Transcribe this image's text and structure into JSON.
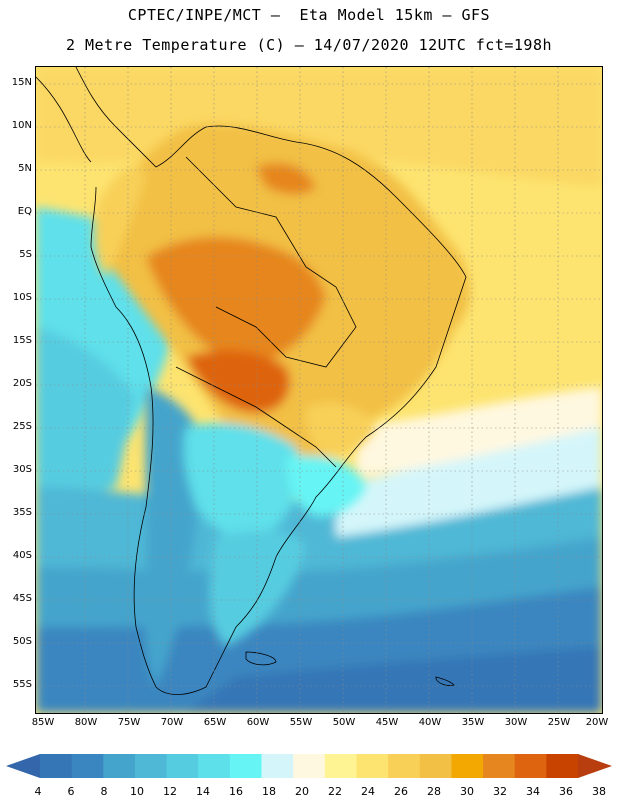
{
  "header": {
    "line1": "CPTEC/INPE/MCT –  Eta Model 15km – GFS",
    "line2": "2 Metre Temperature (C) – 14/07/2020 12UTC fct=198h"
  },
  "axes": {
    "latitudes": [
      "15N",
      "10N",
      "5N",
      "EQ",
      "5S",
      "10S",
      "15S",
      "20S",
      "25S",
      "30S",
      "35S",
      "40S",
      "45S",
      "50S",
      "55S"
    ],
    "longitudes": [
      "85W",
      "80W",
      "75W",
      "70W",
      "65W",
      "60W",
      "55W",
      "50W",
      "45W",
      "40W",
      "35W",
      "30W",
      "25W",
      "20W"
    ]
  },
  "colorbar": {
    "labels": [
      "4",
      "6",
      "8",
      "10",
      "12",
      "14",
      "16",
      "18",
      "20",
      "22",
      "24",
      "26",
      "28",
      "30",
      "32",
      "34",
      "36",
      "38"
    ],
    "colors": [
      "#3476b6",
      "#3a86c0",
      "#45a4cc",
      "#4fb8d6",
      "#56cce0",
      "#5ee0ea",
      "#66f4f4",
      "#d4f6fa",
      "#fff8e0",
      "#fff494",
      "#fde470",
      "#f8d058",
      "#f2c044",
      "#f2a800",
      "#e6861e",
      "#de6410",
      "#c84200"
    ],
    "low_arrow_color": "#3366aa",
    "high_arrow_color": "#b83e10"
  }
}
